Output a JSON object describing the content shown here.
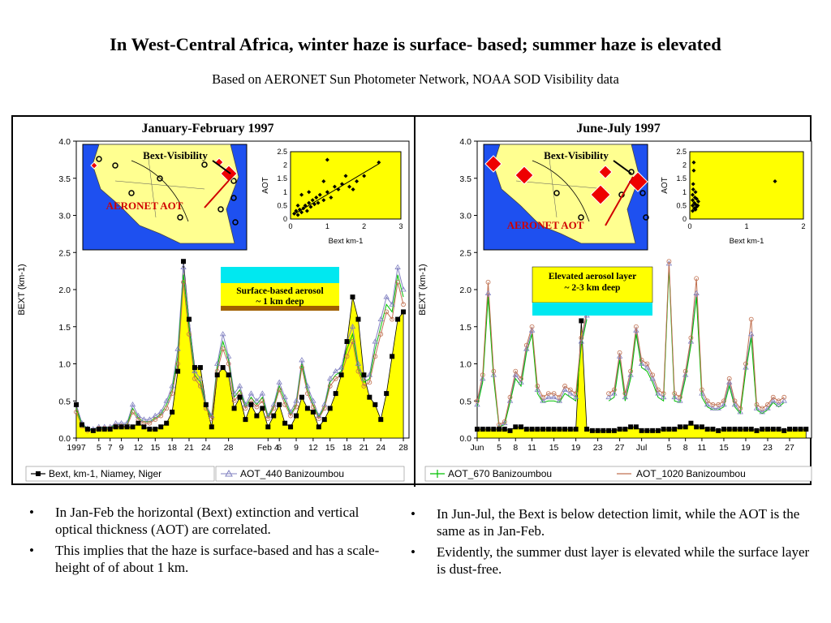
{
  "page": {
    "title": "In West-Central Africa, winter haze is surface- based; summer haze is elevated",
    "subtitle": "Based on AERONET Sun Photometer Network, NOAA SOD Visibility data"
  },
  "bullets_left": [
    "In Jan-Feb the horizontal (Bext) extinction and vertical optical thickness (AOT) are correlated.",
    "This implies that the haze is surface-based and has a scale-height of of about 1 km."
  ],
  "bullets_right": [
    "In Jun-Jul, the Bext is below detection limit, while the AOT is the same as in Jan-Feb.",
    "Evidently, the summer dust layer is elevated while the surface layer is dust-free."
  ],
  "colors": {
    "plot_bg": "#ffff00",
    "bext_fill": "#ffff00",
    "aot440": "#8080c0",
    "aot670": "#00c000",
    "aot1020": "#c07050",
    "map_sea": "#1e50f0",
    "map_land": "#ffff90",
    "cyan": "#00e8f0",
    "brown": "#a06000"
  },
  "chart_data": [
    {
      "type": "line",
      "title": "January-February 1997",
      "ylabel": "BEXT (km-1)",
      "ylim": [
        0,
        4.0
      ],
      "yticks": [
        "0.0",
        "0.5",
        "1.0",
        "1.5",
        "2.0",
        "2.5",
        "3.0",
        "3.5",
        "4.0"
      ],
      "xticks": [
        "1997",
        "5",
        "7",
        "9",
        "12",
        "15",
        "18",
        "21",
        "24",
        "28",
        "Feb 4",
        "6",
        "9",
        "12",
        "15",
        "18",
        "21",
        "24",
        "28"
      ],
      "xtick_pos": [
        0,
        4,
        6,
        8,
        11,
        14,
        17,
        20,
        23,
        27,
        34,
        36,
        39,
        42,
        45,
        48,
        51,
        54,
        58
      ],
      "xlim": [
        0,
        59
      ],
      "inset_labels": {
        "map_a": "Bext-Visibility",
        "map_b": "AERONET AOT",
        "box_line1": "Surface-based aerosol",
        "box_line2": "~ 1 km deep"
      },
      "scatter": {
        "xlabel": "Bext km-1",
        "ylabel": "AOT",
        "xticks": [
          "0",
          "1",
          "2",
          "3"
        ],
        "yticks": [
          "0",
          "0.5",
          "1",
          "1.5",
          "2",
          "2.5"
        ],
        "xlim": [
          0,
          3
        ],
        "ylim": [
          0,
          2.5
        ],
        "points": [
          [
            0.1,
            0.2
          ],
          [
            0.15,
            0.3
          ],
          [
            0.2,
            0.15
          ],
          [
            0.25,
            0.35
          ],
          [
            0.3,
            0.25
          ],
          [
            0.35,
            0.4
          ],
          [
            0.4,
            0.5
          ],
          [
            0.45,
            0.3
          ],
          [
            0.5,
            0.6
          ],
          [
            0.55,
            0.45
          ],
          [
            0.6,
            0.7
          ],
          [
            0.65,
            0.55
          ],
          [
            0.7,
            0.8
          ],
          [
            0.75,
            0.6
          ],
          [
            0.8,
            0.9
          ],
          [
            0.9,
            0.7
          ],
          [
            1.0,
            1.0
          ],
          [
            1.1,
            0.8
          ],
          [
            1.2,
            1.2
          ],
          [
            1.3,
            1.1
          ],
          [
            1.5,
            1.6
          ],
          [
            1.6,
            1.2
          ],
          [
            1.8,
            1.4
          ],
          [
            2.0,
            1.6
          ],
          [
            2.4,
            2.1
          ],
          [
            0.3,
            0.9
          ],
          [
            0.5,
            1.0
          ],
          [
            0.9,
            1.4
          ],
          [
            1.0,
            2.2
          ],
          [
            1.4,
            1.3
          ],
          [
            0.2,
            0.5
          ],
          [
            1.7,
            1.1
          ]
        ],
        "fit": [
          [
            0.1,
            0.18
          ],
          [
            2.4,
            2.05
          ]
        ]
      },
      "series": [
        {
          "name": "Bext, km-1, Niamey, Niger",
          "values": [
            0.45,
            0.18,
            0.12,
            0.1,
            0.12,
            0.12,
            0.12,
            0.15,
            0.15,
            0.15,
            0.15,
            0.2,
            0.15,
            0.12,
            0.12,
            0.15,
            0.2,
            0.35,
            0.9,
            2.38,
            1.6,
            0.95,
            0.95,
            0.45,
            0.15,
            0.85,
            0.95,
            0.85,
            0.4,
            0.55,
            0.25,
            0.45,
            0.3,
            0.4,
            0.15,
            0.3,
            0.45,
            0.2,
            0.15,
            0.3,
            0.55,
            0.4,
            0.35,
            0.15,
            0.25,
            0.4,
            0.6,
            0.85,
            1.3,
            1.9,
            1.6,
            0.85,
            0.55,
            0.45,
            0.25,
            0.6,
            1.1,
            1.6,
            1.7
          ]
        },
        {
          "name": "AOT_440 Banizoumbou",
          "values": [
            0.45,
            0.2,
            0.13,
            0.12,
            0.15,
            0.15,
            0.15,
            0.2,
            0.2,
            0.2,
            0.45,
            0.3,
            0.25,
            0.25,
            0.3,
            0.35,
            0.5,
            0.7,
            1.2,
            2.3,
            1.6,
            0.9,
            0.8,
            0.45,
            0.3,
            1.0,
            1.4,
            1.1,
            0.6,
            0.7,
            0.45,
            0.6,
            0.5,
            0.6,
            0.3,
            0.45,
            0.75,
            0.55,
            0.35,
            0.5,
            1.05,
            0.7,
            0.5,
            0.3,
            0.45,
            0.8,
            0.9,
            0.95,
            1.3,
            1.5,
            1.0,
            0.8,
            0.85,
            1.3,
            1.6,
            1.9,
            1.8,
            2.3,
            2.0
          ]
        },
        {
          "name": "AOT_670 Banizoumbou",
          "values": [
            0.4,
            0.18,
            0.12,
            0.11,
            0.14,
            0.14,
            0.14,
            0.18,
            0.18,
            0.18,
            0.4,
            0.27,
            0.22,
            0.22,
            0.27,
            0.32,
            0.45,
            0.65,
            1.1,
            2.2,
            1.5,
            0.85,
            0.75,
            0.42,
            0.28,
            0.95,
            1.3,
            1.05,
            0.55,
            0.65,
            0.42,
            0.55,
            0.45,
            0.55,
            0.28,
            0.42,
            0.7,
            0.5,
            0.32,
            0.45,
            1.0,
            0.65,
            0.45,
            0.28,
            0.42,
            0.75,
            0.85,
            0.9,
            1.2,
            1.4,
            0.95,
            0.75,
            0.8,
            1.2,
            1.5,
            1.8,
            1.7,
            2.2,
            1.9
          ]
        },
        {
          "name": "AOT_1020 Banizoumbou",
          "values": [
            0.35,
            0.16,
            0.1,
            0.1,
            0.13,
            0.13,
            0.13,
            0.16,
            0.16,
            0.16,
            0.35,
            0.25,
            0.2,
            0.2,
            0.25,
            0.3,
            0.4,
            0.6,
            1.0,
            2.1,
            1.4,
            0.8,
            0.7,
            0.4,
            0.26,
            0.9,
            1.2,
            1.0,
            0.5,
            0.6,
            0.4,
            0.5,
            0.42,
            0.5,
            0.26,
            0.4,
            0.65,
            0.45,
            0.3,
            0.42,
            0.95,
            0.6,
            0.42,
            0.26,
            0.4,
            0.7,
            0.8,
            0.85,
            1.1,
            1.3,
            0.9,
            0.7,
            0.75,
            1.1,
            1.4,
            1.7,
            1.6,
            2.1,
            1.8
          ]
        }
      ]
    },
    {
      "type": "line",
      "title": "June-July 1997",
      "ylabel": "BEXT (km-1)",
      "ylim": [
        0,
        4.0
      ],
      "yticks": [
        "0.0",
        "0.5",
        "1.0",
        "1.5",
        "2.0",
        "2.5",
        "3.0",
        "3.5",
        "4.0"
      ],
      "xticks": [
        "Jun",
        "5",
        "8",
        "11",
        "15",
        "19",
        "23",
        "27",
        "Jul",
        "5",
        "8",
        "11",
        "15",
        "19",
        "23",
        "27"
      ],
      "xtick_pos": [
        0,
        4,
        7,
        10,
        14,
        18,
        22,
        26,
        30,
        35,
        38,
        41,
        45,
        49,
        53,
        57
      ],
      "xlim": [
        0,
        61
      ],
      "inset_labels": {
        "map_a": "Bext-Visibility",
        "map_b": "AERONET AOT",
        "box_line1": "Elevated aerosol layer",
        "box_line2": "~ 2-3 km deep"
      },
      "scatter": {
        "xlabel": "Bext km-1",
        "ylabel": "AOT",
        "xticks": [
          "0",
          "1",
          "2"
        ],
        "yticks": [
          "0",
          "0.5",
          "1",
          "1.5",
          "2",
          "2.5"
        ],
        "xlim": [
          0,
          2
        ],
        "ylim": [
          0,
          2.5
        ],
        "points": [
          [
            0.05,
            0.3
          ],
          [
            0.05,
            0.5
          ],
          [
            0.05,
            0.7
          ],
          [
            0.05,
            0.9
          ],
          [
            0.06,
            1.1
          ],
          [
            0.06,
            1.3
          ],
          [
            0.07,
            1.8
          ],
          [
            0.07,
            2.1
          ],
          [
            0.08,
            0.4
          ],
          [
            0.08,
            0.6
          ],
          [
            0.09,
            0.8
          ],
          [
            0.1,
            0.35
          ],
          [
            0.1,
            0.55
          ],
          [
            0.1,
            1.0
          ],
          [
            0.12,
            0.45
          ],
          [
            0.12,
            0.75
          ],
          [
            0.14,
            0.5
          ],
          [
            0.15,
            0.65
          ],
          [
            1.5,
            1.4
          ]
        ],
        "fit": []
      },
      "series": [
        {
          "name": "Bext, km-1, Niamey, Niger",
          "values": [
            0.12,
            0.12,
            0.12,
            0.12,
            0.12,
            0.12,
            0.1,
            0.15,
            0.15,
            0.12,
            0.12,
            0.12,
            0.12,
            0.12,
            0.12,
            0.12,
            0.12,
            0.12,
            0.12,
            1.58,
            0.12,
            0.1,
            0.1,
            0.1,
            0.1,
            0.1,
            0.12,
            0.12,
            0.15,
            0.15,
            0.1,
            0.1,
            0.1,
            0.1,
            0.12,
            0.12,
            0.12,
            0.15,
            0.15,
            0.2,
            0.15,
            0.15,
            0.12,
            0.12,
            0.1,
            0.12,
            0.12,
            0.12,
            0.12,
            0.12,
            0.12,
            0.1,
            0.12,
            0.12,
            0.12,
            0.12,
            0.1,
            0.12,
            0.12,
            0.12,
            0.12
          ]
        },
        {
          "name": "AOT_440 Banizoumbou",
          "values": [
            0.45,
            0.8,
            1.95,
            0.85,
            0.15,
            0.2,
            0.5,
            0.85,
            0.75,
            1.2,
            1.45,
            0.65,
            0.5,
            0.55,
            0.55,
            0.5,
            0.65,
            0.6,
            0.55,
            1.3,
            1.65,
            null,
            null,
            null,
            0.55,
            0.6,
            1.1,
            0.55,
            0.85,
            1.45,
            1.0,
            0.95,
            0.8,
            0.6,
            0.55,
            2.35,
            0.55,
            0.5,
            0.85,
            1.3,
            1.95,
            0.6,
            0.45,
            0.4,
            0.4,
            0.45,
            0.75,
            0.45,
            0.35,
            0.95,
            1.4,
            0.4,
            0.35,
            0.4,
            0.5,
            0.45,
            0.5,
            null,
            null,
            null,
            null
          ]
        },
        {
          "name": "AOT_670 Banizoumbou",
          "values": [
            0.42,
            0.75,
            1.9,
            0.8,
            0.15,
            0.18,
            0.48,
            0.8,
            0.7,
            1.15,
            1.4,
            0.6,
            0.48,
            0.5,
            0.5,
            0.48,
            0.6,
            0.55,
            0.5,
            1.25,
            1.6,
            null,
            null,
            null,
            0.5,
            0.55,
            1.05,
            0.5,
            0.8,
            1.4,
            0.95,
            0.9,
            0.75,
            0.55,
            0.5,
            2.3,
            0.5,
            0.48,
            0.8,
            1.25,
            1.9,
            0.55,
            0.42,
            0.38,
            0.38,
            0.42,
            0.7,
            0.42,
            0.33,
            0.9,
            1.35,
            0.38,
            0.33,
            0.38,
            0.48,
            0.42,
            0.48,
            null,
            null,
            null,
            null
          ]
        },
        {
          "name": "AOT_1020 Banizoumbou",
          "values": [
            0.5,
            0.85,
            2.1,
            0.9,
            0.18,
            0.22,
            0.55,
            0.9,
            0.8,
            1.25,
            1.5,
            0.7,
            0.55,
            0.6,
            0.6,
            0.55,
            0.7,
            0.65,
            0.6,
            1.35,
            1.7,
            null,
            null,
            null,
            0.6,
            0.65,
            1.15,
            0.6,
            0.9,
            1.5,
            1.05,
            1.0,
            0.85,
            0.65,
            0.6,
            2.38,
            0.6,
            0.55,
            0.9,
            1.35,
            2.15,
            0.65,
            0.5,
            0.45,
            0.45,
            0.5,
            0.8,
            0.5,
            0.4,
            1.0,
            1.6,
            0.45,
            0.4,
            0.45,
            0.55,
            0.5,
            0.55,
            null,
            null,
            null,
            null
          ]
        }
      ]
    }
  ]
}
